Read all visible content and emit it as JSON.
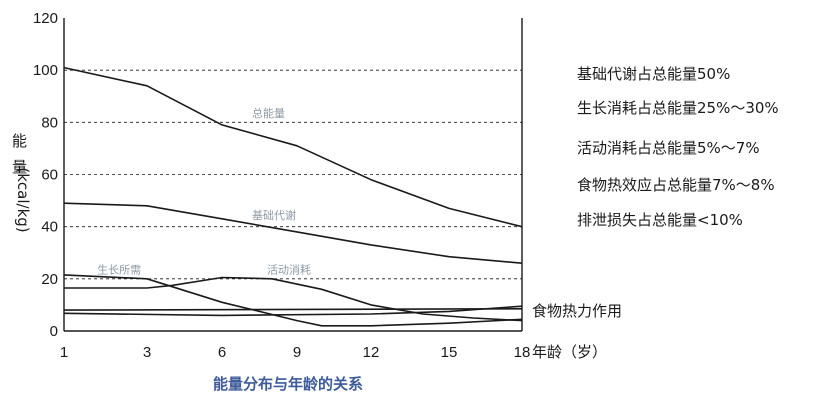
{
  "chart_data": {
    "type": "line",
    "title": "能量分布与年龄的关系",
    "xlabel": "年龄（岁）",
    "ylabel_main": "能量",
    "ylabel_unit": "(kcal/kg)",
    "x_ticks": [
      1,
      3,
      6,
      9,
      12,
      15,
      18
    ],
    "y_ticks": [
      0,
      20,
      40,
      60,
      80,
      100,
      120
    ],
    "xlim": [
      1,
      18
    ],
    "ylim": [
      0,
      120
    ],
    "grid_y": [
      20,
      40,
      60,
      80,
      100
    ],
    "grid_style": "dashed horizontal",
    "series": [
      {
        "name": "总能量",
        "label_at": [
          7.2,
          82
        ],
        "x": [
          1,
          3,
          6,
          9,
          12,
          15,
          18
        ],
        "y": [
          101,
          94,
          79,
          71,
          58,
          47,
          40
        ]
      },
      {
        "name": "基础代谢",
        "label_at": [
          7.2,
          43
        ],
        "x": [
          1,
          3,
          6,
          9,
          12,
          15,
          18
        ],
        "y": [
          49,
          48,
          43,
          38,
          33,
          28.5,
          26
        ]
      },
      {
        "name": "生长所需",
        "label_at": [
          1.8,
          22
        ],
        "x": [
          1,
          3,
          6,
          9,
          10,
          12,
          15,
          18
        ],
        "y": [
          21.5,
          20,
          11,
          4,
          2,
          2,
          3,
          4.5
        ]
      },
      {
        "name": "活动消耗",
        "label_at": [
          7.8,
          22
        ],
        "x": [
          1,
          3,
          4,
          6,
          8,
          10,
          12,
          14,
          16,
          18
        ],
        "y": [
          16.5,
          16.5,
          17.5,
          20.5,
          20,
          16,
          10,
          6.5,
          5,
          4
        ]
      },
      {
        "name": "",
        "x": [
          1,
          18
        ],
        "y": [
          8,
          8.5
        ]
      },
      {
        "name": "",
        "label_at": [
          1.8,
          2
        ],
        "x": [
          1,
          6,
          12,
          15,
          18
        ],
        "y": [
          6.8,
          6,
          6.5,
          7.5,
          9.5
        ]
      }
    ],
    "annotations": [
      "基础代谢占总能量50%",
      "生长消耗占总能量25%～30%",
      "活动消耗占总能量5%～7%",
      "食物热效应占总能量7%～8%",
      "排泄损失占总能量<10%"
    ],
    "side_label": "食物热力作用",
    "side_label_y": 6.8,
    "caption_color": "#3d5a99",
    "line_color": "#1a1a1a",
    "series_label_color": "#8e9aa6"
  }
}
